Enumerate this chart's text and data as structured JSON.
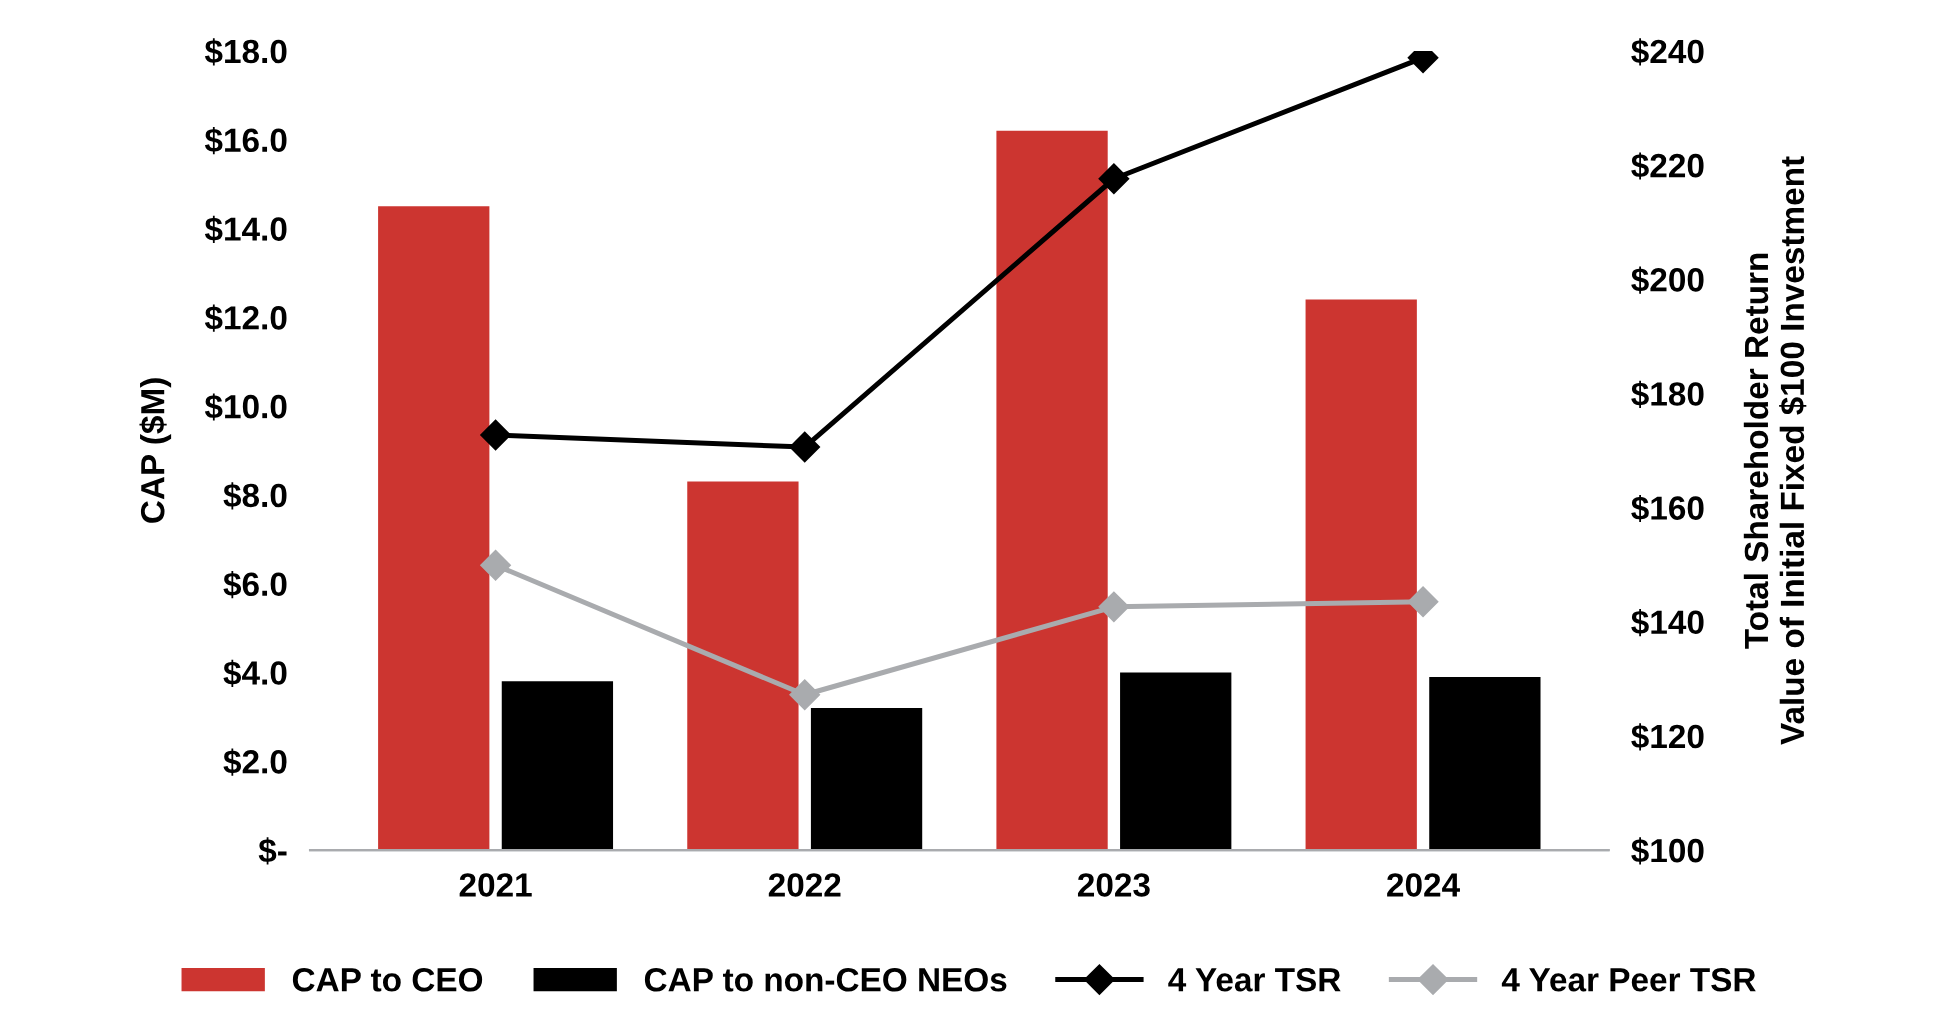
{
  "chart_data": {
    "type": "bar",
    "categories": [
      "2021",
      "2022",
      "2023",
      "2024"
    ],
    "ylabel": "CAP ($M)",
    "y2label": "Total Shareholder Return\nValue of Initial Fixed $100 Investment",
    "ylim": [
      0,
      18
    ],
    "yticks": [
      {
        "value": 0,
        "label": "$-"
      },
      {
        "value": 2,
        "label": "$2.0"
      },
      {
        "value": 4,
        "label": "$4.0"
      },
      {
        "value": 6,
        "label": "$6.0"
      },
      {
        "value": 8,
        "label": "$8.0"
      },
      {
        "value": 10,
        "label": "$10.0"
      },
      {
        "value": 12,
        "label": "$12.0"
      },
      {
        "value": 14,
        "label": "$14.0"
      },
      {
        "value": 16,
        "label": "$16.0"
      },
      {
        "value": 18,
        "label": "$18.0"
      }
    ],
    "y2lim": [
      100,
      240
    ],
    "y2ticks": [
      {
        "value": 100,
        "label": "$100"
      },
      {
        "value": 120,
        "label": "$120"
      },
      {
        "value": 140,
        "label": "$140"
      },
      {
        "value": 160,
        "label": "$160"
      },
      {
        "value": 180,
        "label": "$180"
      },
      {
        "value": 200,
        "label": "$200"
      },
      {
        "value": 220,
        "label": "$220"
      },
      {
        "value": 240,
        "label": "$240"
      }
    ],
    "series": [
      {
        "name": "CAP to CEO",
        "color": "#cc3530",
        "values": [
          14.5,
          8.3,
          16.2,
          12.4
        ]
      },
      {
        "name": "CAP to non-CEO NEOs",
        "color": "#000000",
        "values": [
          3.8,
          3.2,
          4.0,
          3.9
        ]
      },
      {
        "name": "4 Year TSR",
        "type": "line",
        "axis": "y2",
        "color": "#000000",
        "marker": "diamond",
        "values": [
          172.7,
          170.6,
          217.6,
          238.8
        ]
      },
      {
        "name": "4 Year Peer TSR",
        "type": "line",
        "axis": "y2",
        "color": "#a9abae",
        "marker": "diamond",
        "values": [
          149.9,
          127.2,
          142.6,
          143.5
        ]
      }
    ],
    "grid": false,
    "legend": "bottom"
  }
}
